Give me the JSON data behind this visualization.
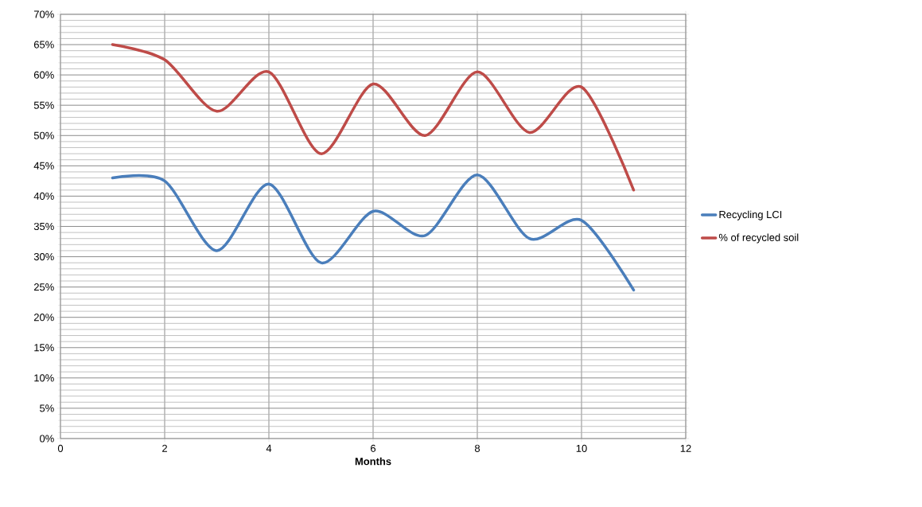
{
  "chart_data": {
    "type": "line",
    "xlabel": "Months",
    "x": [
      1,
      2,
      3,
      4,
      5,
      6,
      7,
      8,
      9,
      10,
      11
    ],
    "series": [
      {
        "name": "Recycling LCI",
        "color": "#4a7ebb",
        "values": [
          43,
          42.5,
          31,
          42,
          29,
          37.5,
          33.5,
          43.5,
          33,
          36,
          24.5
        ]
      },
      {
        "name": "% of recycled soil",
        "color": "#be4b48",
        "values": [
          65,
          62.5,
          54,
          60.5,
          47,
          58.5,
          50,
          60.5,
          50.5,
          58,
          41
        ]
      }
    ],
    "xlim": [
      0,
      12
    ],
    "xticks": [
      0,
      2,
      4,
      6,
      8,
      10,
      12
    ],
    "ylim": [
      0,
      70
    ],
    "yticks": [
      {
        "value": 0,
        "label": "0%"
      },
      {
        "value": 5,
        "label": "5%"
      },
      {
        "value": 10,
        "label": "10%"
      },
      {
        "value": 15,
        "label": "15%"
      },
      {
        "value": 20,
        "label": "20%"
      },
      {
        "value": 25,
        "label": "25%"
      },
      {
        "value": 30,
        "label": "30%"
      },
      {
        "value": 35,
        "label": "35%"
      },
      {
        "value": 40,
        "label": "40%"
      },
      {
        "value": 45,
        "label": "45%"
      },
      {
        "value": 50,
        "label": "50%"
      },
      {
        "value": 55,
        "label": "55%"
      },
      {
        "value": 60,
        "label": "60%"
      },
      {
        "value": 65,
        "label": "65%"
      },
      {
        "value": 70,
        "label": "70%"
      }
    ],
    "grid": true,
    "legend": "right",
    "marker": "none",
    "line_style": "solid"
  }
}
